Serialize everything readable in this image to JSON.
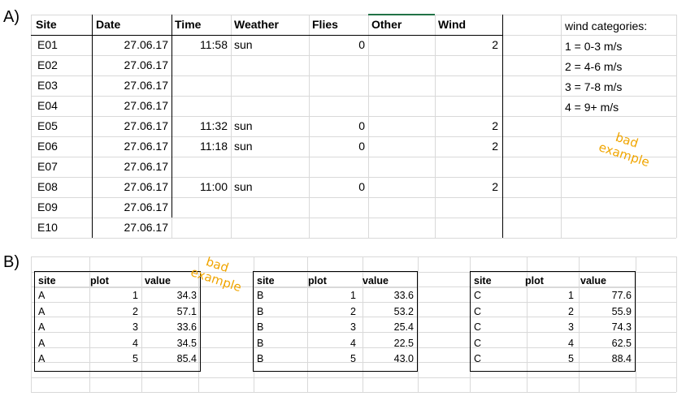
{
  "panel_a": {
    "label": "A)",
    "headers": {
      "site": "Site",
      "date": "Date",
      "time": "Time",
      "weather": "Weather",
      "flies": "Flies",
      "other": "Other",
      "wind": "Wind"
    },
    "rows": [
      {
        "site": "E01",
        "date": "27.06.17",
        "time": "11:58",
        "weather": "sun",
        "flies": "0",
        "wind": "2"
      },
      {
        "site": "E02",
        "date": "27.06.17",
        "time": "",
        "weather": "",
        "flies": "",
        "wind": ""
      },
      {
        "site": "E03",
        "date": "27.06.17",
        "time": "",
        "weather": "",
        "flies": "",
        "wind": ""
      },
      {
        "site": "E04",
        "date": "27.06.17",
        "time": "",
        "weather": "",
        "flies": "",
        "wind": ""
      },
      {
        "site": "E05",
        "date": "27.06.17",
        "time": "11:32",
        "weather": "sun",
        "flies": "0",
        "wind": "2"
      },
      {
        "site": "E06",
        "date": "27.06.17",
        "time": "11:18",
        "weather": "sun",
        "flies": "0",
        "wind": "2"
      },
      {
        "site": "E07",
        "date": "27.06.17",
        "time": "",
        "weather": "",
        "flies": "",
        "wind": ""
      },
      {
        "site": "E08",
        "date": "27.06.17",
        "time": "11:00",
        "weather": "sun",
        "flies": "0",
        "wind": "2"
      },
      {
        "site": "E09",
        "date": "27.06.17",
        "time": "",
        "weather": "",
        "flies": "",
        "wind": ""
      },
      {
        "site": "E10",
        "date": "27.06.17",
        "time": "",
        "weather": "",
        "flies": "",
        "wind": ""
      }
    ],
    "wind_legend": [
      "wind categories:",
      "1 = 0-3 m/s",
      "2 = 4-6 m/s",
      "3 = 7-8 m/s",
      "4 = 9+ m/s"
    ],
    "note_line1": "bad",
    "note_line2": "example"
  },
  "panel_b": {
    "label": "B)",
    "note_line1": "bad",
    "note_line2": "example",
    "headers": {
      "site": "site",
      "plot": "plot",
      "value": "value"
    },
    "tables": [
      {
        "rows": [
          [
            "A",
            "1",
            "34.3"
          ],
          [
            "A",
            "2",
            "57.1"
          ],
          [
            "A",
            "3",
            "33.6"
          ],
          [
            "A",
            "4",
            "34.5"
          ],
          [
            "A",
            "5",
            "85.4"
          ]
        ]
      },
      {
        "rows": [
          [
            "B",
            "1",
            "33.6"
          ],
          [
            "B",
            "2",
            "53.2"
          ],
          [
            "B",
            "3",
            "25.4"
          ],
          [
            "B",
            "4",
            "22.5"
          ],
          [
            "B",
            "5",
            "43.0"
          ]
        ]
      },
      {
        "rows": [
          [
            "C",
            "1",
            "77.6"
          ],
          [
            "C",
            "2",
            "55.9"
          ],
          [
            "C",
            "3",
            "74.3"
          ],
          [
            "C",
            "4",
            "62.5"
          ],
          [
            "C",
            "5",
            "88.4"
          ]
        ]
      }
    ]
  },
  "colors": {
    "note": "#f0a500",
    "grid": "#d9d9d9"
  }
}
